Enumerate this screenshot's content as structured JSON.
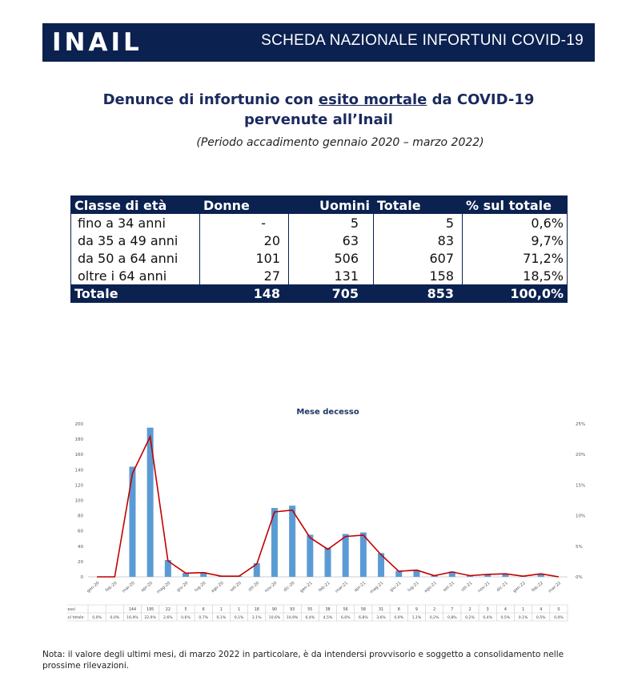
{
  "header": {
    "logo": "INAIL",
    "title": "SCHEDA NAZIONALE INFORTUNI COVID-19"
  },
  "heading": {
    "line1_pre": "Denunce di infortunio con ",
    "line1_underlined": "esito mortale",
    "line1_post": " da COVID-19",
    "line2": "pervenute all’Inail",
    "period": "(Periodo accadimento gennaio 2020 – marzo 2022)"
  },
  "age_table": {
    "headers": [
      "Classe di età",
      "Donne",
      "Uomini",
      "Totale",
      "% sul totale"
    ],
    "rows": [
      [
        "fino a 34 anni",
        "-",
        "5",
        "5",
        "0,6%"
      ],
      [
        "da 35 a 49 anni",
        "20",
        "63",
        "83",
        "9,7%"
      ],
      [
        "da 50 a 64 anni",
        "101",
        "506",
        "607",
        "71,2%"
      ],
      [
        "oltre i 64 anni",
        "27",
        "131",
        "158",
        "18,5%"
      ]
    ],
    "total": [
      "Totale",
      "148",
      "705",
      "853",
      "100,0%"
    ]
  },
  "chart_data": {
    "type": "bar",
    "title": "Mese decesso",
    "categories": [
      "gen-20",
      "feb-20",
      "mar-20",
      "apr-20",
      "mag-20",
      "giu-20",
      "lug-20",
      "ago-20",
      "set-20",
      "ott-20",
      "nov-20",
      "dic-20",
      "gen-21",
      "feb-21",
      "mar-21",
      "apr-21",
      "mag-21",
      "giu-21",
      "lug-21",
      "ago-21",
      "set-21",
      "ott-21",
      "nov-21",
      "dic-21",
      "gen-22",
      "feb-22",
      "mar-22"
    ],
    "series": [
      {
        "name": "decessi",
        "kind": "bar",
        "color": "#5b9bd5",
        "values": [
          0,
          0,
          144,
          195,
          22,
          5,
          6,
          1,
          1,
          18,
          90,
          93,
          55,
          38,
          56,
          58,
          31,
          8,
          9,
          2,
          7,
          2,
          3,
          4,
          1,
          4,
          0
        ],
        "labels": [
          "",
          "",
          "144",
          "195",
          "22",
          "5",
          "6",
          "1",
          "1",
          "18",
          "90",
          "93",
          "55",
          "38",
          "56",
          "58",
          "31",
          "8",
          "9",
          "2",
          "7",
          "2",
          "3",
          "4",
          "1",
          "4",
          "0"
        ]
      },
      {
        "name": "% sul totale",
        "kind": "line",
        "color": "#c00000",
        "values": [
          0.0,
          0.0,
          16.9,
          22.9,
          2.6,
          0.6,
          0.7,
          0.1,
          0.1,
          2.1,
          10.6,
          10.9,
          6.4,
          4.5,
          6.6,
          6.8,
          3.6,
          0.9,
          1.1,
          0.2,
          0.8,
          0.2,
          0.4,
          0.5,
          0.1,
          0.5,
          0.0
        ],
        "labels": [
          "0,0%",
          "0,0%",
          "16,9%",
          "22,9%",
          "2,6%",
          "0,6%",
          "0,7%",
          "0,1%",
          "0,1%",
          "2,1%",
          "10,6%",
          "10,9%",
          "6,4%",
          "4,5%",
          "6,6%",
          "6,8%",
          "3,6%",
          "0,9%",
          "1,1%",
          "0,2%",
          "0,8%",
          "0,2%",
          "0,4%",
          "0,5%",
          "0,1%",
          "0,5%",
          "0,0%"
        ]
      }
    ],
    "y_left": {
      "min": 0,
      "max": 200,
      "ticks": [
        "0",
        "20",
        "40",
        "60",
        "80",
        "100",
        "120",
        "140",
        "160",
        "180",
        "200"
      ]
    },
    "y_right": {
      "min": 0,
      "max": 25,
      "ticks": [
        "0%",
        "5%",
        "10%",
        "15%",
        "20%",
        "25%"
      ]
    },
    "grid": false,
    "legend": "data-table-below"
  },
  "note": "Nota: il valore degli ultimi mesi, di marzo 2022 in particolare, è da intendersi provvisorio e soggetto a consolidamento nelle prossime rilevazioni."
}
